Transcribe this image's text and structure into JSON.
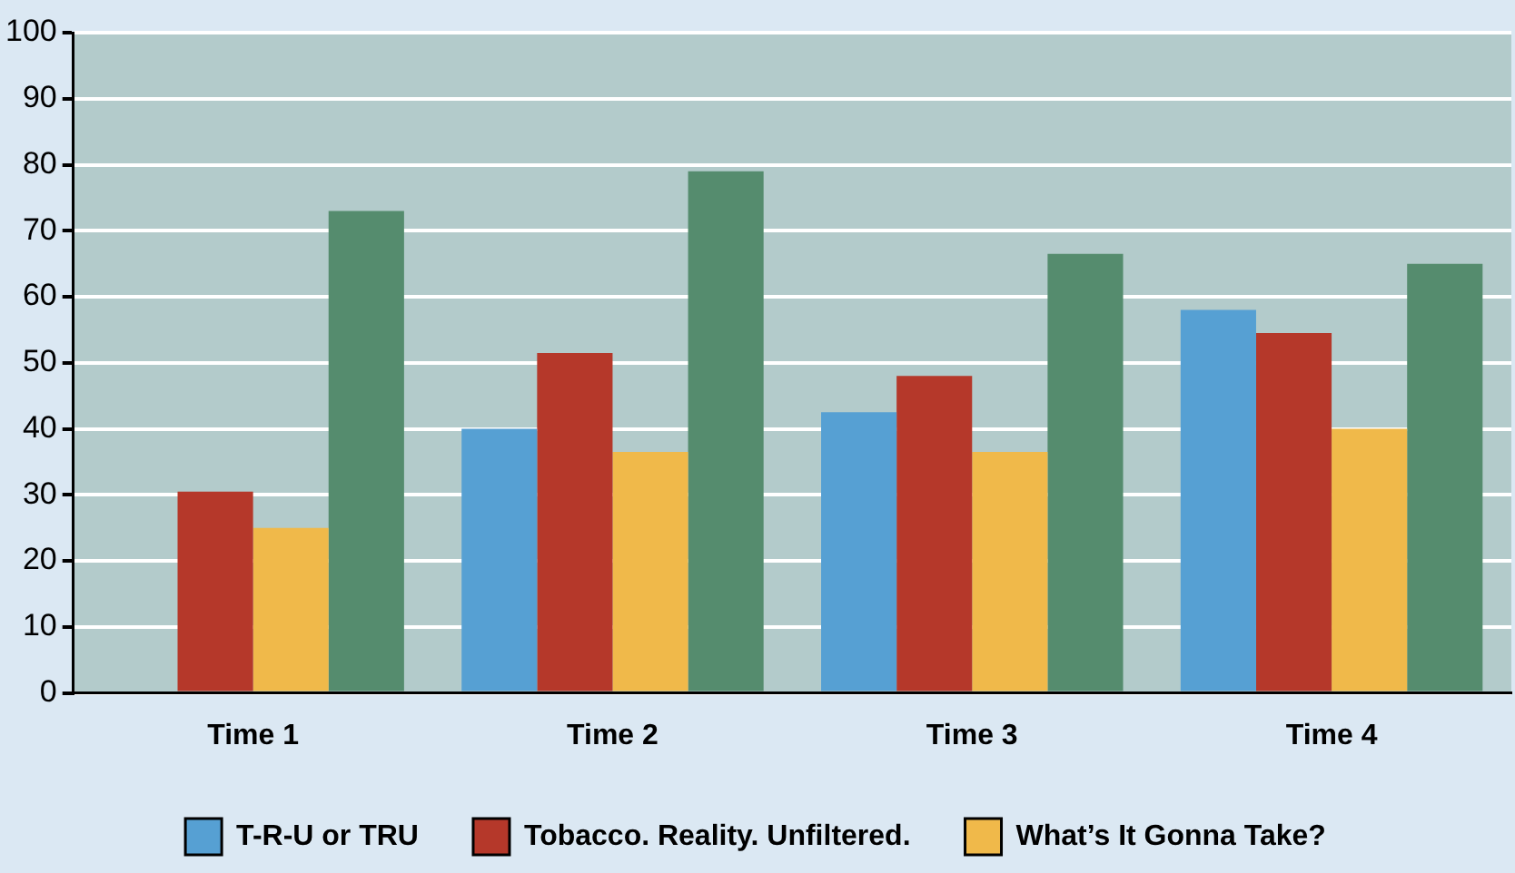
{
  "chart_data": {
    "type": "bar",
    "categories": [
      "Time 1",
      "Time 2",
      "Time 3",
      "Time 4"
    ],
    "series": [
      {
        "name": "T-R-U or TRU",
        "color": "#56a0d3",
        "values": [
          null,
          40,
          42.5,
          58
        ]
      },
      {
        "name": "Tobacco. Reality. Unfiltered.",
        "color": "#b5382a",
        "values": [
          30.5,
          51.5,
          48,
          54.5
        ]
      },
      {
        "name": "What’s It Gonna Take?",
        "color": "#f0b94a",
        "values": [
          25,
          36.5,
          36.5,
          40
        ]
      },
      {
        "color": "#558c6e",
        "values": [
          73,
          79,
          66.5,
          65
        ]
      }
    ],
    "ylim": [
      0,
      100
    ],
    "yticks": [
      0,
      10,
      20,
      30,
      40,
      50,
      60,
      70,
      80,
      90,
      100
    ],
    "grid": "y",
    "legend": "bottom"
  }
}
